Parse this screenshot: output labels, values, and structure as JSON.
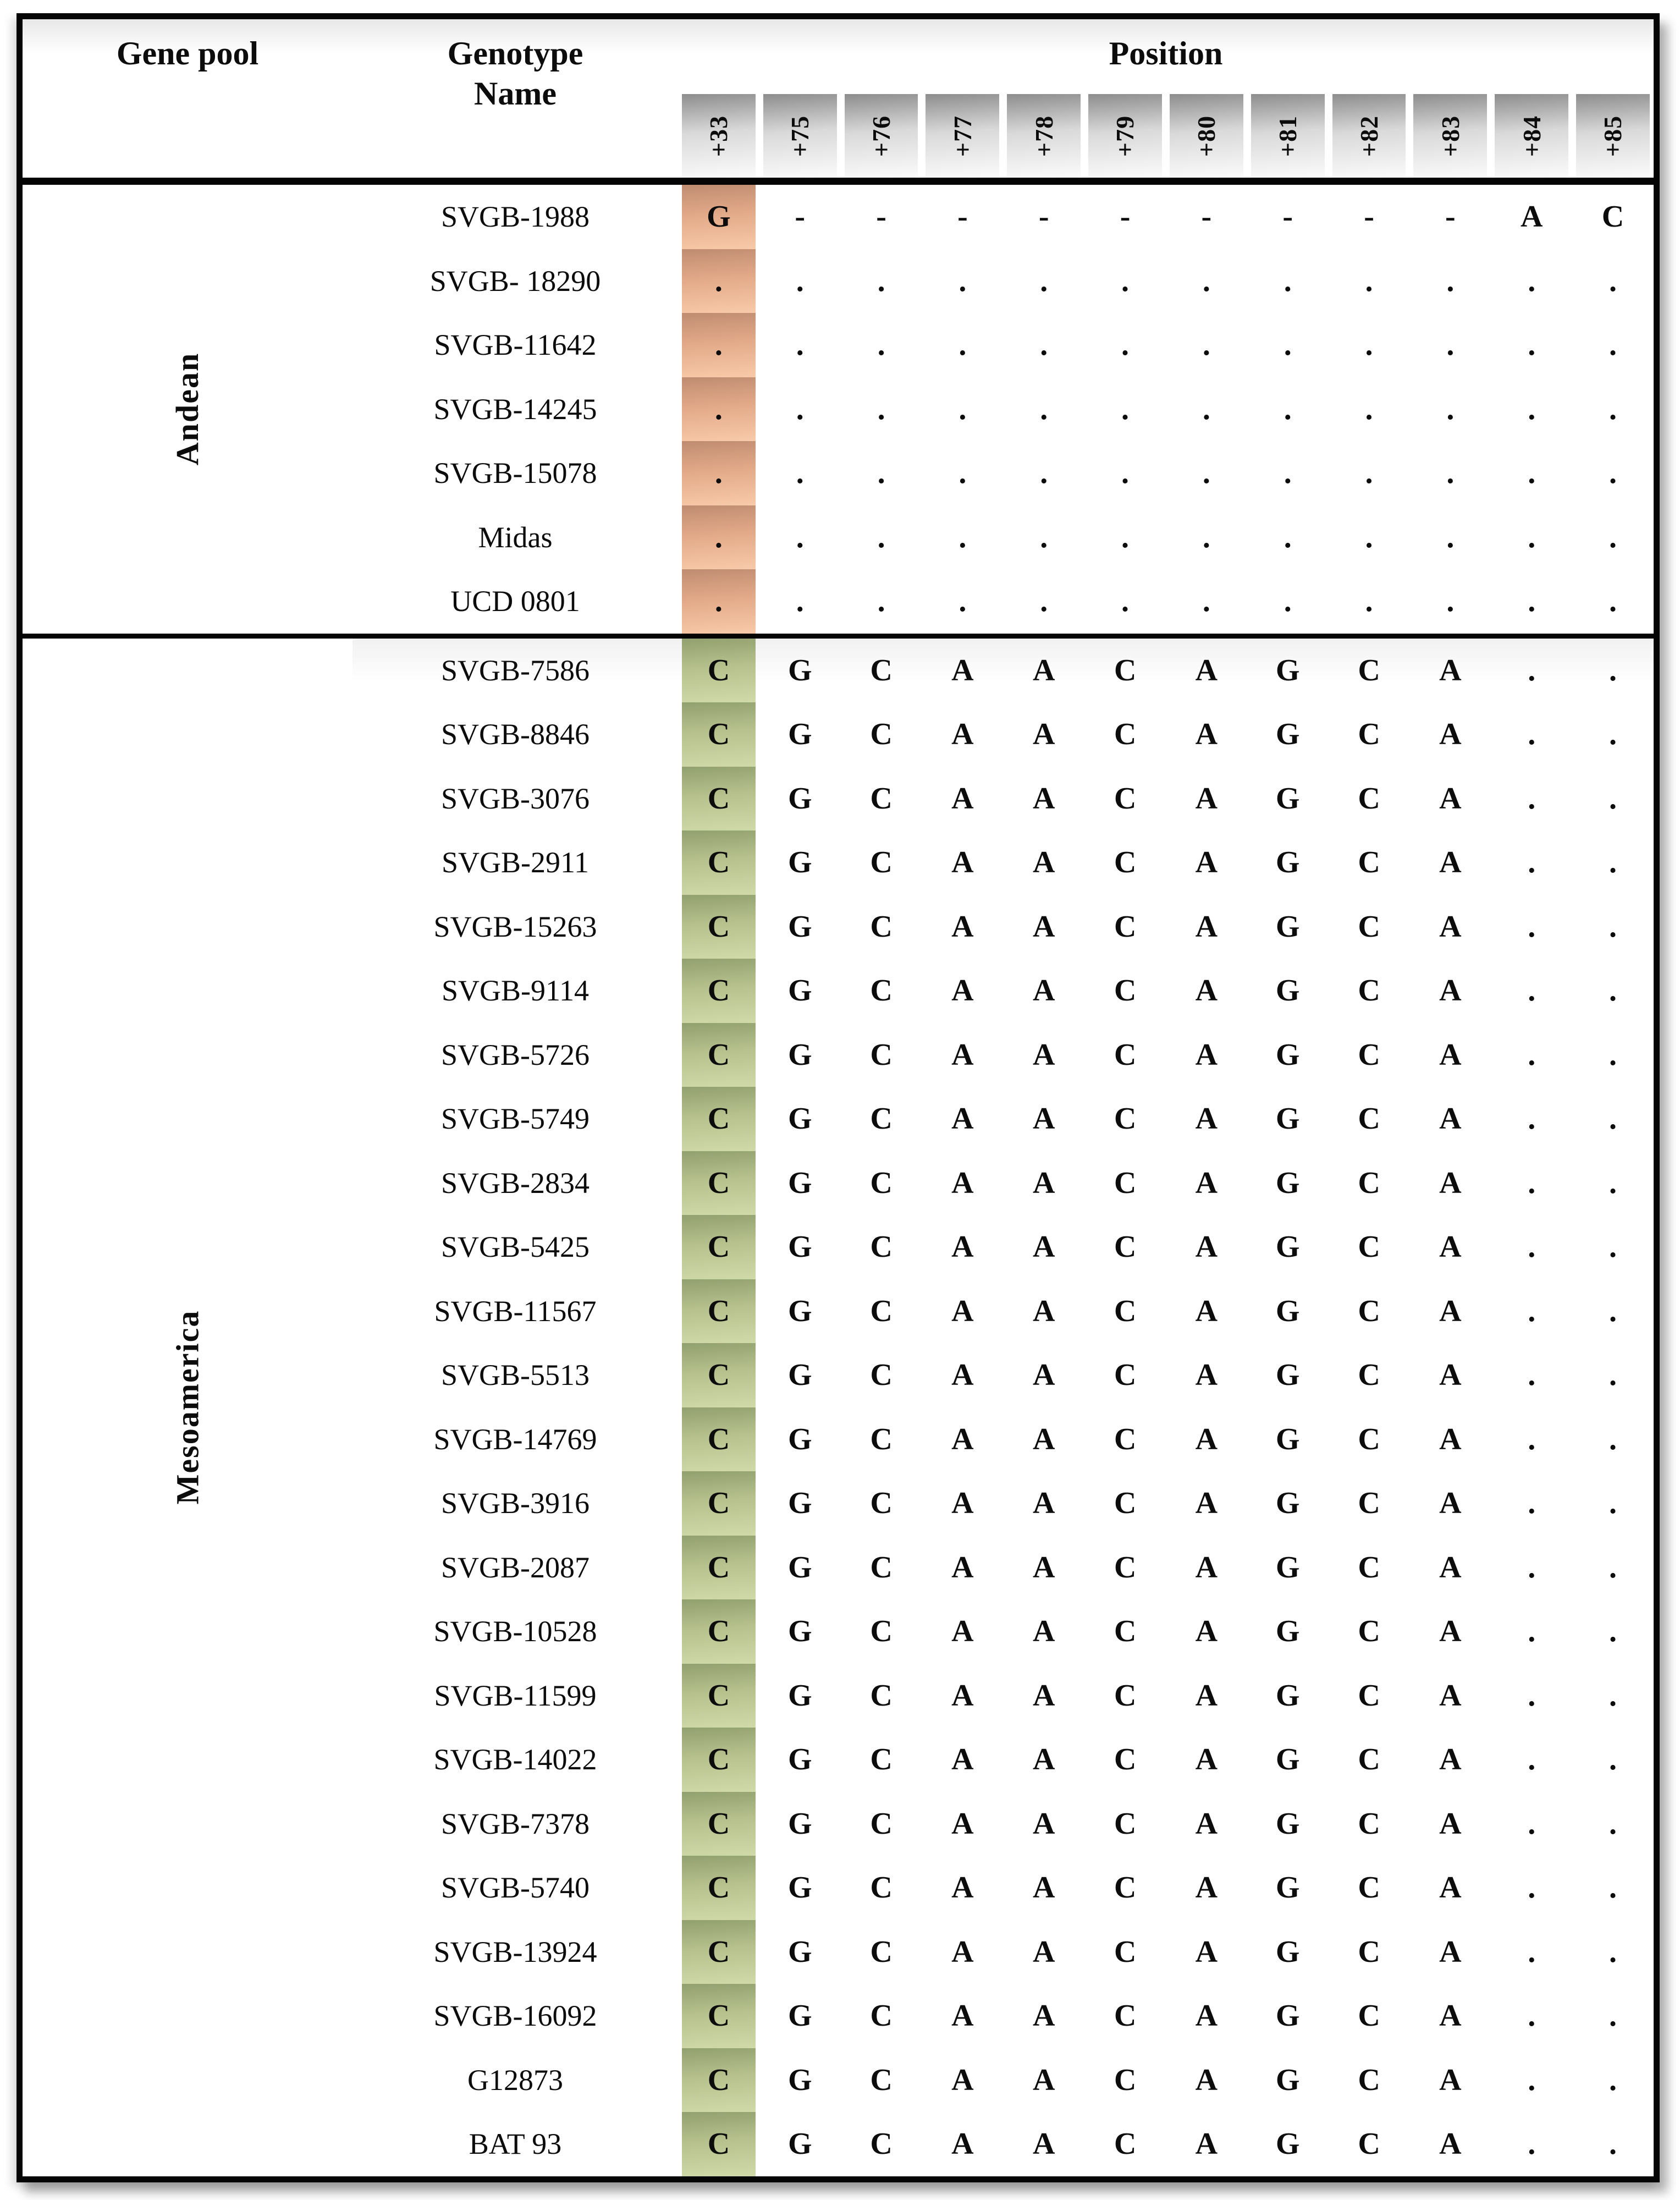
{
  "table": {
    "header": {
      "gene_pool": "Gene pool",
      "genotype_name": "Genotype Name",
      "position": "Position"
    },
    "positions": [
      "+33",
      "+75",
      "+76",
      "+77",
      "+78",
      "+79",
      "+80",
      "+81",
      "+82",
      "+83",
      "+84",
      "+85"
    ],
    "groups": [
      {
        "name": "Andean",
        "accent": "orange",
        "rows": [
          {
            "name": "SVGB-1988",
            "alleles": [
              "G",
              "-",
              "-",
              "-",
              "-",
              "-",
              "-",
              "-",
              "-",
              "-",
              "A",
              "C"
            ]
          },
          {
            "name": "SVGB- 18290",
            "alleles": [
              ".",
              ".",
              ".",
              ".",
              ".",
              ".",
              ".",
              ".",
              ".",
              ".",
              ".",
              "."
            ]
          },
          {
            "name": "SVGB-11642",
            "alleles": [
              ".",
              ".",
              ".",
              ".",
              ".",
              ".",
              ".",
              ".",
              ".",
              ".",
              ".",
              "."
            ]
          },
          {
            "name": "SVGB-14245",
            "alleles": [
              ".",
              ".",
              ".",
              ".",
              ".",
              ".",
              ".",
              ".",
              ".",
              ".",
              ".",
              "."
            ]
          },
          {
            "name": "SVGB-15078",
            "alleles": [
              ".",
              ".",
              ".",
              ".",
              ".",
              ".",
              ".",
              ".",
              ".",
              ".",
              ".",
              "."
            ]
          },
          {
            "name": "Midas",
            "alleles": [
              ".",
              ".",
              ".",
              ".",
              ".",
              ".",
              ".",
              ".",
              ".",
              ".",
              ".",
              "."
            ]
          },
          {
            "name": "UCD 0801",
            "alleles": [
              ".",
              ".",
              ".",
              ".",
              ".",
              ".",
              ".",
              ".",
              ".",
              ".",
              ".",
              "."
            ]
          }
        ]
      },
      {
        "name": "Mesoamerica",
        "accent": "green",
        "rows": [
          {
            "name": "SVGB-7586",
            "alleles": [
              "C",
              "G",
              "C",
              "A",
              "A",
              "C",
              "A",
              "G",
              "C",
              "A",
              ".",
              "."
            ]
          },
          {
            "name": "SVGB-8846",
            "alleles": [
              "C",
              "G",
              "C",
              "A",
              "A",
              "C",
              "A",
              "G",
              "C",
              "A",
              ".",
              "."
            ]
          },
          {
            "name": "SVGB-3076",
            "alleles": [
              "C",
              "G",
              "C",
              "A",
              "A",
              "C",
              "A",
              "G",
              "C",
              "A",
              ".",
              "."
            ]
          },
          {
            "name": "SVGB-2911",
            "alleles": [
              "C",
              "G",
              "C",
              "A",
              "A",
              "C",
              "A",
              "G",
              "C",
              "A",
              ".",
              "."
            ]
          },
          {
            "name": "SVGB-15263",
            "alleles": [
              "C",
              "G",
              "C",
              "A",
              "A",
              "C",
              "A",
              "G",
              "C",
              "A",
              ".",
              "."
            ]
          },
          {
            "name": "SVGB-9114",
            "alleles": [
              "C",
              "G",
              "C",
              "A",
              "A",
              "C",
              "A",
              "G",
              "C",
              "A",
              ".",
              "."
            ]
          },
          {
            "name": "SVGB-5726",
            "alleles": [
              "C",
              "G",
              "C",
              "A",
              "A",
              "C",
              "A",
              "G",
              "C",
              "A",
              ".",
              "."
            ]
          },
          {
            "name": "SVGB-5749",
            "alleles": [
              "C",
              "G",
              "C",
              "A",
              "A",
              "C",
              "A",
              "G",
              "C",
              "A",
              ".",
              "."
            ]
          },
          {
            "name": "SVGB-2834",
            "alleles": [
              "C",
              "G",
              "C",
              "A",
              "A",
              "C",
              "A",
              "G",
              "C",
              "A",
              ".",
              "."
            ]
          },
          {
            "name": "SVGB-5425",
            "alleles": [
              "C",
              "G",
              "C",
              "A",
              "A",
              "C",
              "A",
              "G",
              "C",
              "A",
              ".",
              "."
            ]
          },
          {
            "name": "SVGB-11567",
            "alleles": [
              "C",
              "G",
              "C",
              "A",
              "A",
              "C",
              "A",
              "G",
              "C",
              "A",
              ".",
              "."
            ]
          },
          {
            "name": "SVGB-5513",
            "alleles": [
              "C",
              "G",
              "C",
              "A",
              "A",
              "C",
              "A",
              "G",
              "C",
              "A",
              ".",
              "."
            ]
          },
          {
            "name": "SVGB-14769",
            "alleles": [
              "C",
              "G",
              "C",
              "A",
              "A",
              "C",
              "A",
              "G",
              "C",
              "A",
              ".",
              "."
            ]
          },
          {
            "name": "SVGB-3916",
            "alleles": [
              "C",
              "G",
              "C",
              "A",
              "A",
              "C",
              "A",
              "G",
              "C",
              "A",
              ".",
              "."
            ]
          },
          {
            "name": "SVGB-2087",
            "alleles": [
              "C",
              "G",
              "C",
              "A",
              "A",
              "C",
              "A",
              "G",
              "C",
              "A",
              ".",
              "."
            ]
          },
          {
            "name": "SVGB-10528",
            "alleles": [
              "C",
              "G",
              "C",
              "A",
              "A",
              "C",
              "A",
              "G",
              "C",
              "A",
              ".",
              "."
            ]
          },
          {
            "name": "SVGB-11599",
            "alleles": [
              "C",
              "G",
              "C",
              "A",
              "A",
              "C",
              "A",
              "G",
              "C",
              "A",
              ".",
              "."
            ]
          },
          {
            "name": "SVGB-14022",
            "alleles": [
              "C",
              "G",
              "C",
              "A",
              "A",
              "C",
              "A",
              "G",
              "C",
              "A",
              ".",
              "."
            ]
          },
          {
            "name": "SVGB-7378",
            "alleles": [
              "C",
              "G",
              "C",
              "A",
              "A",
              "C",
              "A",
              "G",
              "C",
              "A",
              ".",
              "."
            ]
          },
          {
            "name": "SVGB-5740",
            "alleles": [
              "C",
              "G",
              "C",
              "A",
              "A",
              "C",
              "A",
              "G",
              "C",
              "A",
              ".",
              "."
            ]
          },
          {
            "name": "SVGB-13924",
            "alleles": [
              "C",
              "G",
              "C",
              "A",
              "A",
              "C",
              "A",
              "G",
              "C",
              "A",
              ".",
              "."
            ]
          },
          {
            "name": "SVGB-16092",
            "alleles": [
              "C",
              "G",
              "C",
              "A",
              "A",
              "C",
              "A",
              "G",
              "C",
              "A",
              ".",
              "."
            ]
          },
          {
            "name": "G12873",
            "alleles": [
              "C",
              "G",
              "C",
              "A",
              "A",
              "C",
              "A",
              "G",
              "C",
              "A",
              ".",
              "."
            ]
          },
          {
            "name": "BAT 93",
            "alleles": [
              "C",
              "G",
              "C",
              "A",
              "A",
              "C",
              "A",
              "G",
              "C",
              "A",
              ".",
              "."
            ]
          }
        ]
      }
    ]
  },
  "colors": {
    "border": "#050505",
    "orange": {
      "top": "#bf8c71",
      "mid": "#e2a988",
      "bottom": "#f8caa9"
    },
    "green": {
      "top": "#92a06f",
      "mid": "#b6c18d",
      "bottom": "#d0daa9"
    },
    "header_cell": {
      "top": "#8d8d8d",
      "mid": "#d9d9d9",
      "bottom": "#fbfbfb"
    }
  }
}
